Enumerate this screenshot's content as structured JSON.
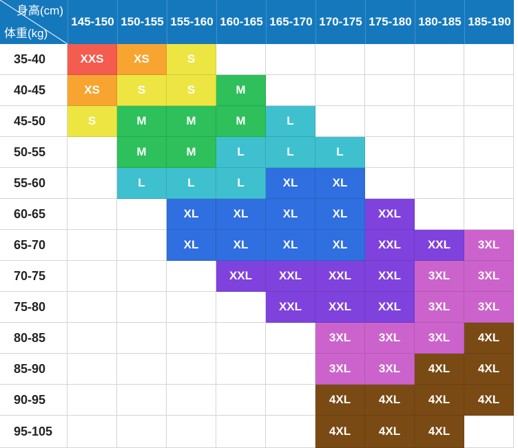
{
  "corner": {
    "height_label": "身高(cm)",
    "weight_label": "体重(kg)"
  },
  "heights": [
    "145-150",
    "150-155",
    "155-160",
    "160-165",
    "165-170",
    "170-175",
    "175-180",
    "180-185",
    "185-190"
  ],
  "weights": [
    "35-40",
    "40-45",
    "45-50",
    "50-55",
    "55-60",
    "60-65",
    "65-70",
    "70-75",
    "75-80",
    "80-85",
    "85-90",
    "90-95",
    "95-105"
  ],
  "grid": [
    [
      "XXS",
      "XS",
      "S",
      "",
      "",
      "",
      "",
      "",
      ""
    ],
    [
      "XS",
      "S",
      "S",
      "M",
      "",
      "",
      "",
      "",
      ""
    ],
    [
      "S",
      "M",
      "M",
      "M",
      "L",
      "",
      "",
      "",
      ""
    ],
    [
      "",
      "M",
      "M",
      "L",
      "L",
      "L",
      "",
      "",
      ""
    ],
    [
      "",
      "L",
      "L",
      "L",
      "XL",
      "XL",
      "",
      "",
      ""
    ],
    [
      "",
      "",
      "XL",
      "XL",
      "XL",
      "XL",
      "XXL",
      "",
      ""
    ],
    [
      "",
      "",
      "XL",
      "XL",
      "XL",
      "XL",
      "XXL",
      "XXL",
      "3XL"
    ],
    [
      "",
      "",
      "",
      "XXL",
      "XXL",
      "XXL",
      "XXL",
      "3XL",
      "3XL"
    ],
    [
      "",
      "",
      "",
      "",
      "XXL",
      "XXL",
      "XXL",
      "3XL",
      "3XL"
    ],
    [
      "",
      "",
      "",
      "",
      "",
      "3XL",
      "3XL",
      "3XL",
      "4XL"
    ],
    [
      "",
      "",
      "",
      "",
      "",
      "3XL",
      "3XL",
      "4XL",
      "4XL"
    ],
    [
      "",
      "",
      "",
      "",
      "",
      "4XL",
      "4XL",
      "4XL",
      "4XL"
    ],
    [
      "",
      "",
      "",
      "",
      "",
      "4XL",
      "4XL",
      "4XL",
      ""
    ]
  ],
  "size_colors": {
    "XXS": "#f35c4f",
    "XS": "#f7a530",
    "S": "#ede642",
    "M": "#2ec05a",
    "L": "#3fc0cf",
    "XL": "#2f6fe0",
    "XXL": "#7f42dd",
    "3XL": "#cc63cc",
    "4XL": "#7a4a14"
  }
}
